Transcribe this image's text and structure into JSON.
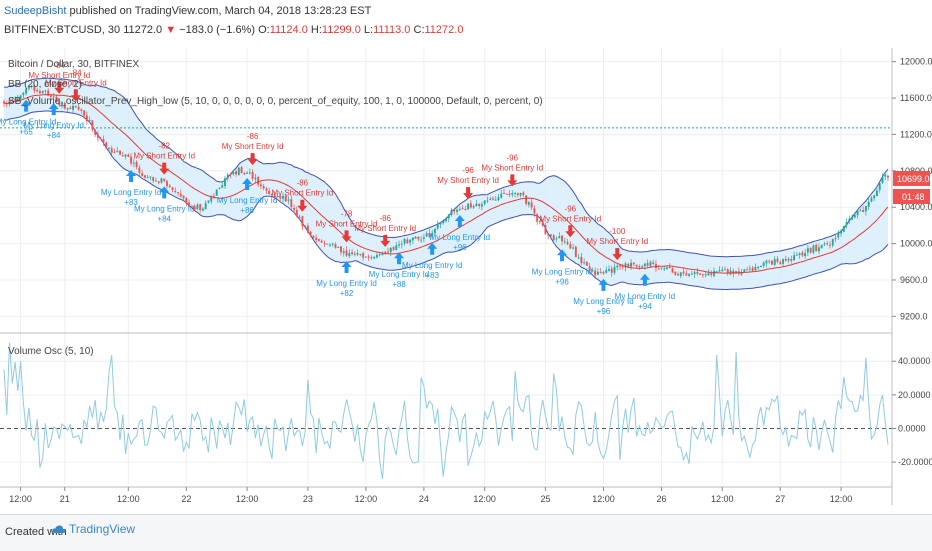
{
  "header": {
    "author": "SudeepBisht",
    "published": "published on TradingView.com, March 04, 2018 13:28:23 EST",
    "symbol": "BITFINEX:BTCUSD, 30",
    "last": "11272.0",
    "change": "−183.0 (−1.6%)",
    "o_label": "O:",
    "o_val": "11124.0",
    "h_label": "H:",
    "h_val": "11299.0",
    "l_label": "L:",
    "l_val": "11113.0",
    "c_label": "C:",
    "c_val": "11272.0"
  },
  "overlay": {
    "pair": "Bitcoin / Dollar, 30, BITFINEX",
    "bb": "BB (20, close, 2)",
    "strategy": "SB_Volume_oscillator_Prev_High_low (5, 10, 0, 0, 0, 0, 0, 0, percent_of_equity, 100, 1, 0, 100000, Default, 0, percent, 0)",
    "osc_title": "Volume Osc (5, 10)"
  },
  "price_badges": {
    "price": "10699.0",
    "timer": "01:48"
  },
  "footer": {
    "created": "Created with",
    "brand": "TradingView"
  },
  "colors": {
    "band_fill": "#d6ecfa",
    "band_line": "#3f51b5",
    "basis": "#e53935",
    "candle_up": "#26a69a",
    "candle_down": "#ef5350",
    "long_arrow": "#2196f3",
    "short_arrow": "#e53935",
    "osc_line": "#8fcbe3",
    "grid": "#eceff3"
  },
  "chart_data": {
    "type": "line",
    "title": "Bitcoin / Dollar, 30, BITFINEX",
    "x_ticks": [
      "12:00",
      "21",
      "12:00",
      "22",
      "12:00",
      "23",
      "12:00",
      "24",
      "12:00",
      "25",
      "12:00",
      "26",
      "12:00",
      "27",
      "12:00"
    ],
    "price_axis": {
      "ticks": [
        "12000.0",
        "11600.0",
        "11200.0",
        "10800.0",
        "10400.0",
        "10000.0",
        "9600.0",
        "9200.0"
      ],
      "ylim": [
        9050,
        12150
      ]
    },
    "horizontal_line": 11272,
    "osc_axis": {
      "ticks": [
        "40.0000",
        "20.0000",
        "0.0000",
        "-20.0000"
      ],
      "ylim": [
        -33,
        55
      ]
    },
    "close_anchors": {
      "bar": [
        0,
        10,
        25,
        40,
        55,
        70,
        85,
        100,
        115,
        130,
        150,
        165,
        185,
        200,
        215,
        230,
        250,
        265,
        280,
        295,
        310,
        320
      ],
      "close": [
        11550,
        11700,
        11500,
        11000,
        10700,
        10400,
        10800,
        10500,
        10000,
        9850,
        10050,
        10400,
        10550,
        10050,
        9680,
        9780,
        9650,
        9700,
        9800,
        9950,
        10350,
        10750
      ]
    },
    "long_signals": [
      {
        "label": "My Long Entry Id",
        "value": "+65",
        "bar": 8
      },
      {
        "label": "My Long Entry Id",
        "value": "+84",
        "bar": 18
      },
      {
        "label": "My Long Entry Id",
        "value": "+83",
        "bar": 46
      },
      {
        "label": "My Long Entry Id",
        "value": "+84",
        "bar": 58
      },
      {
        "label": "My Long Entry Id",
        "value": "+86",
        "bar": 88
      },
      {
        "label": "My Long Entry Id",
        "value": "+82",
        "bar": 124
      },
      {
        "label": "My Long Entry Id",
        "value": "+88",
        "bar": 143
      },
      {
        "label": "My Long Entry Id",
        "value": "+83",
        "bar": 155
      },
      {
        "label": "My Long Entry Id",
        "value": "+96",
        "bar": 165
      },
      {
        "label": "My Long Entry Id",
        "value": "+96",
        "bar": 202
      },
      {
        "label": "My Long Entry Id",
        "value": "+96",
        "bar": 217
      },
      {
        "label": "My Long Entry Id",
        "value": "+94",
        "bar": 232
      }
    ],
    "short_signals": [
      {
        "label": "My Short Entry Id",
        "value": "-84",
        "bar": 20
      },
      {
        "label": "My Short Entry Id",
        "value": "-84",
        "bar": 26
      },
      {
        "label": "My Short Entry Id",
        "value": "-82",
        "bar": 58
      },
      {
        "label": "My Short Entry Id",
        "value": "-86",
        "bar": 90
      },
      {
        "label": "My Short Entry Id",
        "value": "-86",
        "bar": 108
      },
      {
        "label": "My Short Entry Id",
        "value": "-78",
        "bar": 124
      },
      {
        "label": "My Short Entry Id",
        "value": "-86",
        "bar": 138
      },
      {
        "label": "My Short Entry Id",
        "value": "-96",
        "bar": 168
      },
      {
        "label": "My Short Entry Id",
        "value": "-96",
        "bar": 184
      },
      {
        "label": "My Short Entry Id",
        "value": "-96",
        "bar": 205
      },
      {
        "label": "My Short Entry Id",
        "value": "-100",
        "bar": 222
      }
    ]
  }
}
